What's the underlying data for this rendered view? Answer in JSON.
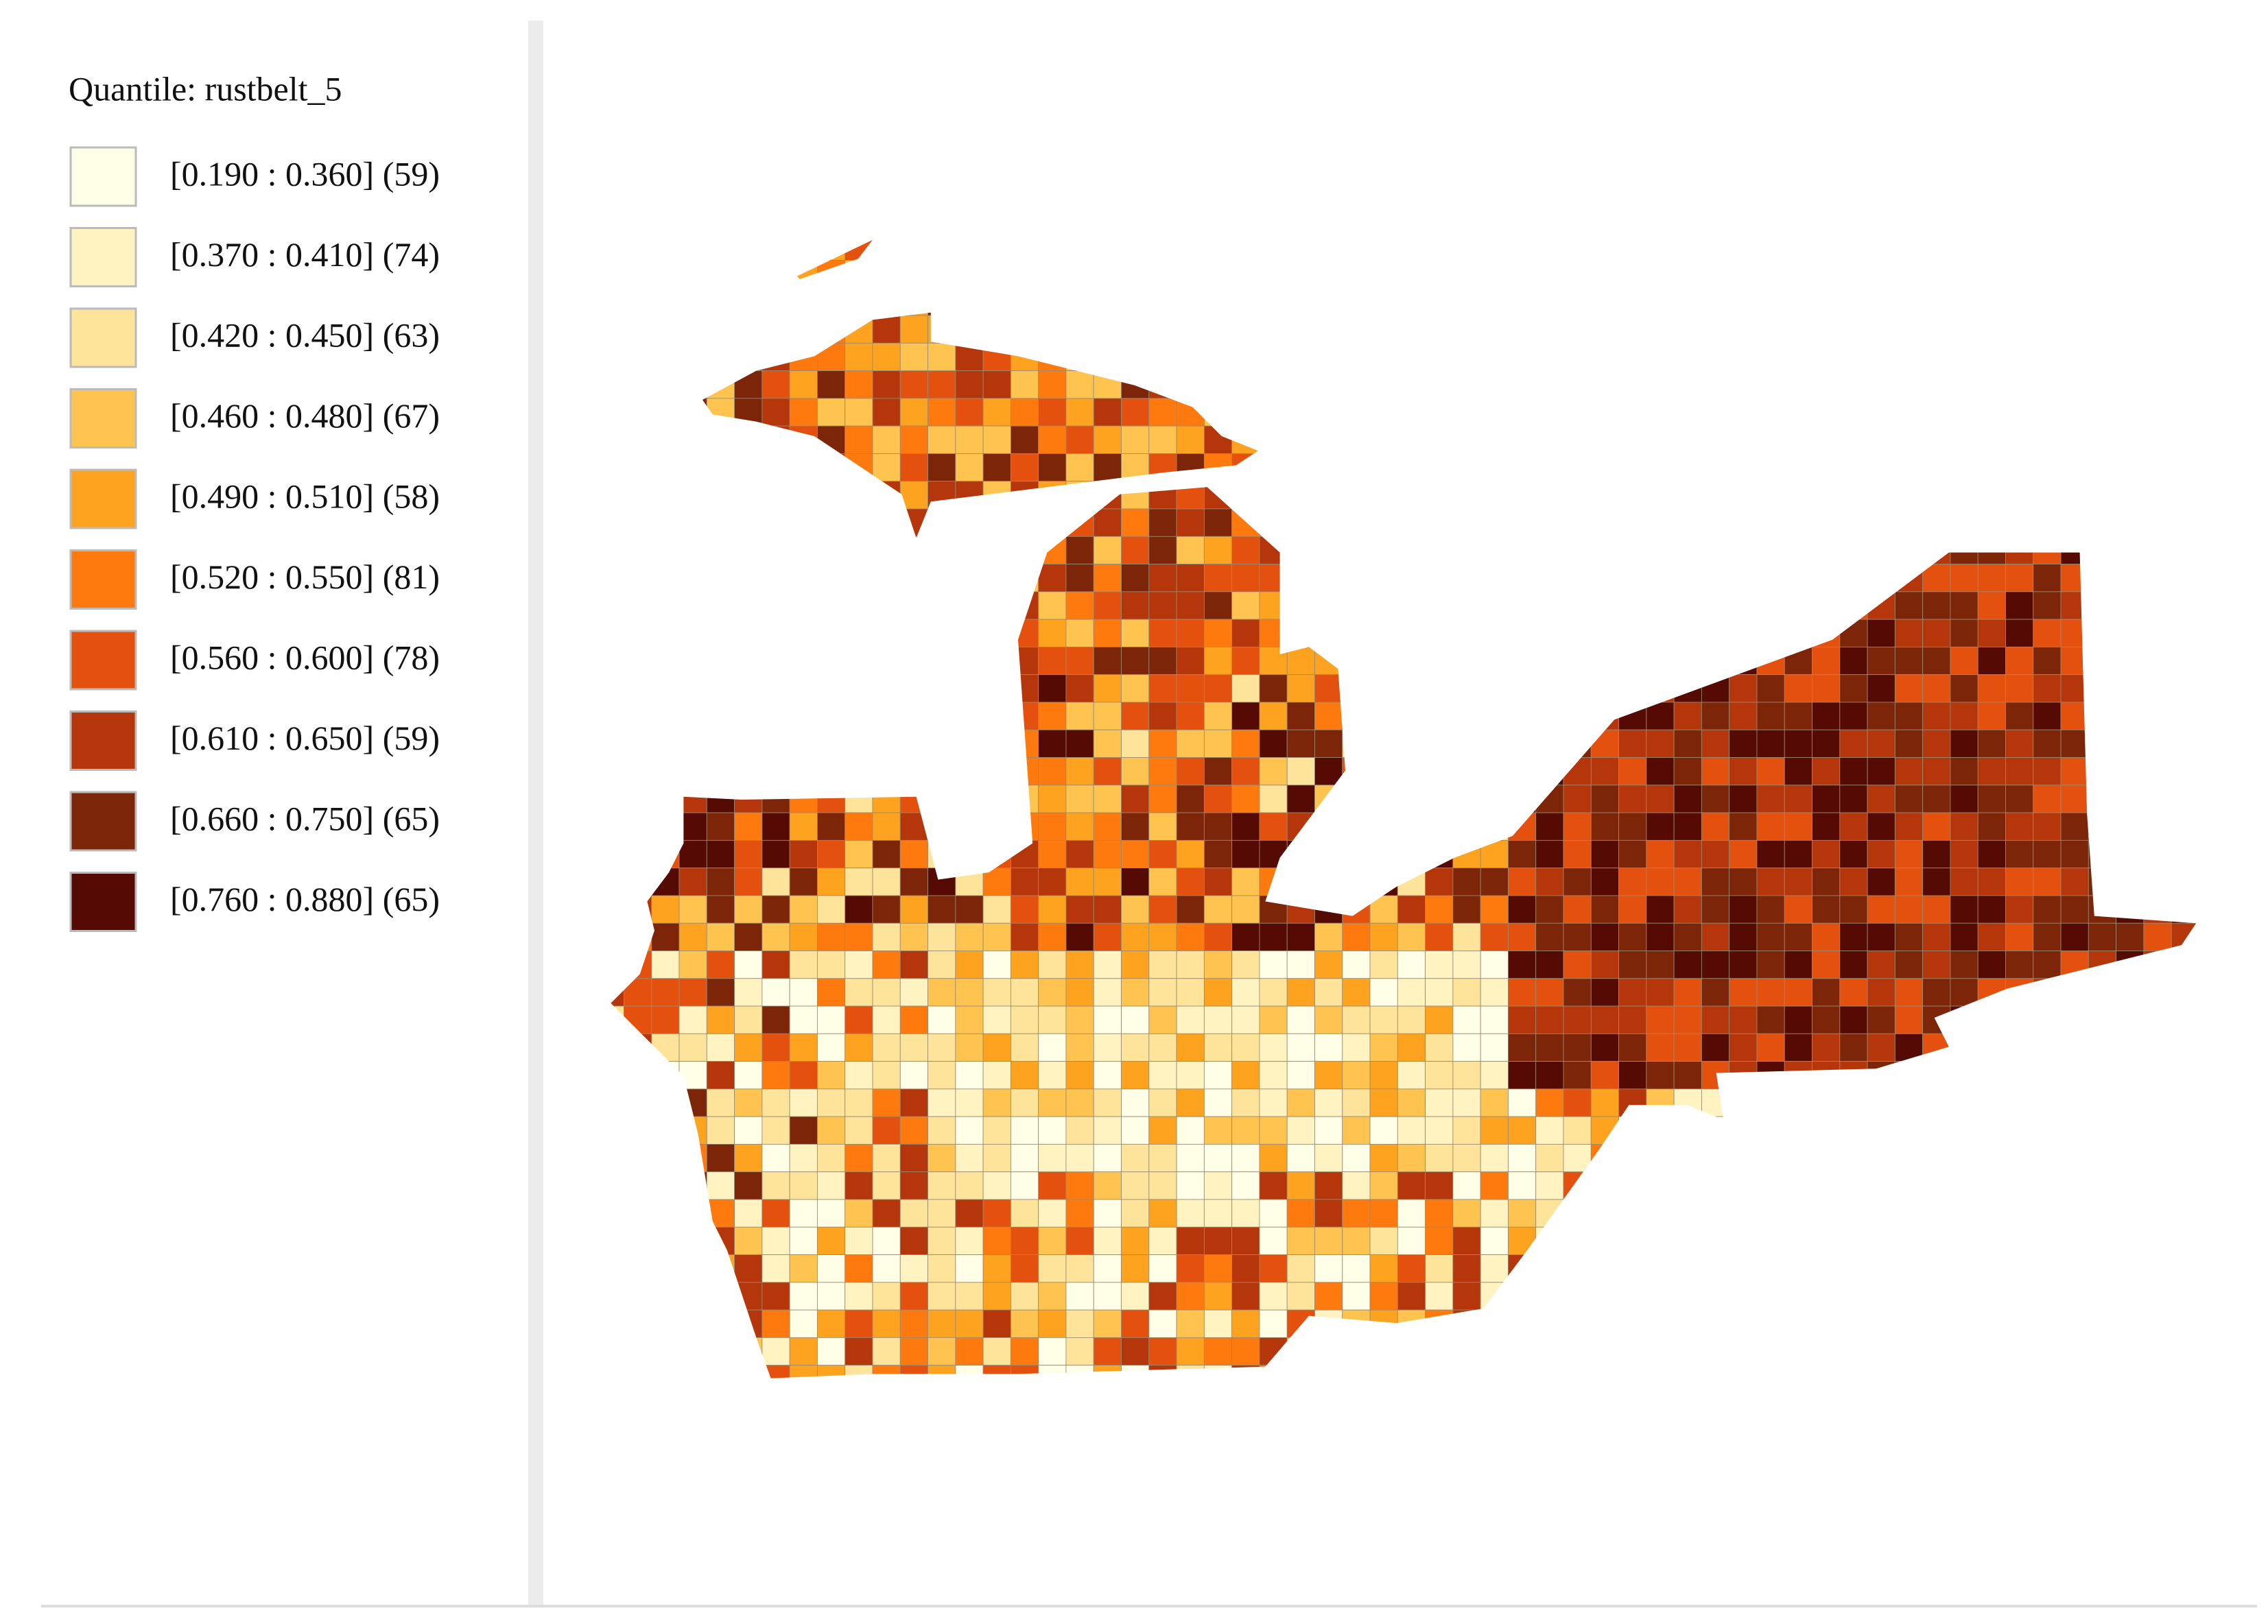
{
  "legend": {
    "title": "Quantile: rustbelt_5",
    "items": [
      {
        "label": "[0.190 : 0.360] (59)",
        "color": "#fffee6"
      },
      {
        "label": "[0.370 : 0.410] (74)",
        "color": "#fff3c2"
      },
      {
        "label": "[0.420 : 0.450] (63)",
        "color": "#fee39a"
      },
      {
        "label": "[0.460 : 0.480] (67)",
        "color": "#fec44f"
      },
      {
        "label": "[0.490 : 0.510] (58)",
        "color": "#fea320"
      },
      {
        "label": "[0.520 : 0.550] (81)",
        "color": "#fe7a0e"
      },
      {
        "label": "[0.560 : 0.600] (78)",
        "color": "#e4510f"
      },
      {
        "label": "[0.610 : 0.650] (59)",
        "color": "#b5360b"
      },
      {
        "label": "[0.660 : 0.750] (65)",
        "color": "#7d2508"
      },
      {
        "label": "[0.760 : 0.880] (65)",
        "color": "#560a04"
      }
    ]
  }
}
